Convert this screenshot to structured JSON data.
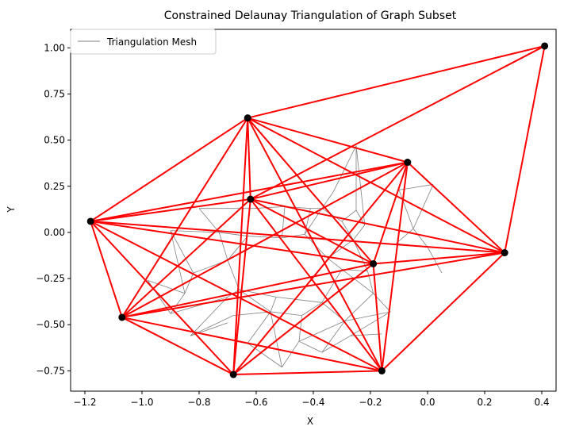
{
  "chart_data": {
    "type": "scatter",
    "title": "Constrained Delaunay Triangulation of Graph Subset",
    "xlabel": "X",
    "ylabel": "Y",
    "xlim": [
      -1.25,
      0.45
    ],
    "ylim": [
      -0.86,
      1.1
    ],
    "xticks": [
      -1.2,
      -1.0,
      -0.8,
      -0.6,
      -0.4,
      -0.2,
      0.0,
      0.2,
      0.4
    ],
    "xtick_labels": [
      "−1.2",
      "−1.0",
      "−0.8",
      "−0.6",
      "−0.4",
      "−0.2",
      "0.0",
      "0.2",
      "0.4"
    ],
    "yticks": [
      -0.75,
      -0.5,
      -0.25,
      0.0,
      0.25,
      0.5,
      0.75,
      1.0
    ],
    "ytick_labels": [
      "−0.75",
      "−0.50",
      "−0.25",
      "0.00",
      "0.25",
      "0.50",
      "0.75",
      "1.00"
    ],
    "grid": false,
    "legend": {
      "position": "upper-left",
      "entries": [
        "Triangulation Mesh"
      ]
    },
    "colors": {
      "nodes": "#000000",
      "edges": "#ff0000",
      "mesh": "#808080"
    },
    "nodes": [
      {
        "x": -1.18,
        "y": 0.06
      },
      {
        "x": -1.07,
        "y": -0.46
      },
      {
        "x": -0.68,
        "y": -0.77
      },
      {
        "x": -0.63,
        "y": 0.62
      },
      {
        "x": -0.62,
        "y": 0.18
      },
      {
        "x": -0.07,
        "y": 0.38
      },
      {
        "x": -0.19,
        "y": -0.17
      },
      {
        "x": -0.16,
        "y": -0.75
      },
      {
        "x": 0.27,
        "y": -0.11
      },
      {
        "x": 0.41,
        "y": 1.01
      }
    ],
    "edges": [
      [
        0,
        1
      ],
      [
        0,
        2
      ],
      [
        0,
        3
      ],
      [
        0,
        4
      ],
      [
        0,
        5
      ],
      [
        0,
        6
      ],
      [
        0,
        7
      ],
      [
        0,
        8
      ],
      [
        1,
        2
      ],
      [
        1,
        3
      ],
      [
        1,
        4
      ],
      [
        1,
        5
      ],
      [
        1,
        6
      ],
      [
        1,
        7
      ],
      [
        1,
        8
      ],
      [
        2,
        3
      ],
      [
        2,
        4
      ],
      [
        2,
        5
      ],
      [
        2,
        6
      ],
      [
        2,
        7
      ],
      [
        3,
        4
      ],
      [
        3,
        5
      ],
      [
        3,
        6
      ],
      [
        3,
        7
      ],
      [
        3,
        8
      ],
      [
        3,
        9
      ],
      [
        4,
        5
      ],
      [
        4,
        6
      ],
      [
        4,
        7
      ],
      [
        4,
        8
      ],
      [
        4,
        9
      ],
      [
        5,
        6
      ],
      [
        5,
        7
      ],
      [
        5,
        8
      ],
      [
        6,
        7
      ],
      [
        6,
        8
      ],
      [
        7,
        8
      ],
      [
        8,
        9
      ]
    ],
    "mesh_segments": [
      [
        [
          -0.9,
          0.01
        ],
        [
          -0.85,
          -0.33
        ]
      ],
      [
        [
          -0.9,
          0.01
        ],
        [
          -0.82,
          -0.22
        ]
      ],
      [
        [
          -0.9,
          0.01
        ],
        [
          -0.73,
          0.0
        ]
      ],
      [
        [
          -0.82,
          -0.22
        ],
        [
          -0.85,
          -0.33
        ]
      ],
      [
        [
          -0.82,
          -0.22
        ],
        [
          -0.7,
          -0.15
        ]
      ],
      [
        [
          -0.85,
          -0.33
        ],
        [
          -0.98,
          -0.26
        ]
      ],
      [
        [
          -0.85,
          -0.33
        ],
        [
          -0.9,
          -0.44
        ]
      ],
      [
        [
          -0.98,
          -0.26
        ],
        [
          -0.9,
          -0.44
        ]
      ],
      [
        [
          -0.9,
          -0.44
        ],
        [
          -0.7,
          -0.35
        ]
      ],
      [
        [
          -0.83,
          -0.56
        ],
        [
          -0.68,
          -0.45
        ]
      ],
      [
        [
          -0.83,
          -0.56
        ],
        [
          -0.7,
          -0.35
        ]
      ],
      [
        [
          -0.73,
          0.0
        ],
        [
          -0.7,
          -0.15
        ]
      ],
      [
        [
          -0.73,
          0.0
        ],
        [
          -0.63,
          -0.02
        ]
      ],
      [
        [
          -0.7,
          -0.15
        ],
        [
          -0.63,
          -0.02
        ]
      ],
      [
        [
          -0.7,
          -0.15
        ],
        [
          -0.66,
          -0.31
        ]
      ],
      [
        [
          -0.66,
          -0.31
        ],
        [
          -0.7,
          -0.35
        ]
      ],
      [
        [
          -0.66,
          -0.31
        ],
        [
          -0.53,
          -0.35
        ]
      ],
      [
        [
          -0.68,
          -0.45
        ],
        [
          -0.55,
          -0.43
        ]
      ],
      [
        [
          -0.63,
          -0.02
        ],
        [
          -0.51,
          -0.03
        ]
      ],
      [
        [
          -0.61,
          0.13
        ],
        [
          -0.5,
          0.14
        ]
      ],
      [
        [
          -0.5,
          0.14
        ],
        [
          -0.51,
          -0.03
        ]
      ],
      [
        [
          -0.5,
          0.14
        ],
        [
          -0.41,
          0.13
        ]
      ],
      [
        [
          -0.51,
          -0.03
        ],
        [
          -0.43,
          -0.01
        ]
      ],
      [
        [
          -0.43,
          -0.01
        ],
        [
          -0.41,
          0.13
        ]
      ],
      [
        [
          -0.43,
          -0.01
        ],
        [
          -0.37,
          0.13
        ]
      ],
      [
        [
          -0.41,
          0.13
        ],
        [
          -0.37,
          0.13
        ]
      ],
      [
        [
          -0.37,
          0.13
        ],
        [
          -0.3,
          0.06
        ]
      ],
      [
        [
          -0.3,
          0.06
        ],
        [
          -0.25,
          0.12
        ]
      ],
      [
        [
          -0.3,
          0.06
        ],
        [
          -0.26,
          -0.04
        ]
      ],
      [
        [
          -0.26,
          -0.04
        ],
        [
          -0.22,
          0.04
        ]
      ],
      [
        [
          -0.22,
          0.04
        ],
        [
          -0.25,
          0.12
        ]
      ],
      [
        [
          -0.25,
          0.12
        ],
        [
          -0.25,
          0.47
        ]
      ],
      [
        [
          -0.22,
          0.04
        ],
        [
          -0.25,
          0.47
        ]
      ],
      [
        [
          -0.33,
          0.22
        ],
        [
          -0.37,
          0.13
        ]
      ],
      [
        [
          -0.33,
          0.22
        ],
        [
          -0.25,
          0.47
        ]
      ],
      [
        [
          -0.26,
          -0.04
        ],
        [
          -0.35,
          -0.14
        ]
      ],
      [
        [
          -0.35,
          -0.14
        ],
        [
          -0.43,
          -0.01
        ]
      ],
      [
        [
          -0.35,
          -0.14
        ],
        [
          -0.3,
          -0.2
        ]
      ],
      [
        [
          -0.3,
          -0.2
        ],
        [
          -0.21,
          -0.21
        ]
      ],
      [
        [
          -0.21,
          -0.21
        ],
        [
          -0.26,
          -0.04
        ]
      ],
      [
        [
          -0.21,
          -0.21
        ],
        [
          -0.19,
          -0.33
        ]
      ],
      [
        [
          -0.19,
          -0.33
        ],
        [
          -0.3,
          -0.2
        ]
      ],
      [
        [
          -0.19,
          -0.33
        ],
        [
          -0.13,
          -0.43
        ]
      ],
      [
        [
          -0.13,
          -0.43
        ],
        [
          -0.29,
          -0.48
        ]
      ],
      [
        [
          -0.29,
          -0.48
        ],
        [
          -0.19,
          -0.33
        ]
      ],
      [
        [
          -0.29,
          -0.48
        ],
        [
          -0.37,
          -0.38
        ]
      ],
      [
        [
          -0.37,
          -0.38
        ],
        [
          -0.3,
          -0.2
        ]
      ],
      [
        [
          -0.37,
          -0.38
        ],
        [
          -0.53,
          -0.35
        ]
      ],
      [
        [
          -0.53,
          -0.35
        ],
        [
          -0.55,
          -0.43
        ]
      ],
      [
        [
          -0.55,
          -0.43
        ],
        [
          -0.44,
          -0.45
        ]
      ],
      [
        [
          -0.44,
          -0.45
        ],
        [
          -0.37,
          -0.38
        ]
      ],
      [
        [
          -0.44,
          -0.45
        ],
        [
          -0.45,
          -0.59
        ]
      ],
      [
        [
          -0.45,
          -0.59
        ],
        [
          -0.29,
          -0.48
        ]
      ],
      [
        [
          -0.45,
          -0.59
        ],
        [
          -0.51,
          -0.73
        ]
      ],
      [
        [
          -0.45,
          -0.59
        ],
        [
          -0.37,
          -0.65
        ]
      ],
      [
        [
          -0.37,
          -0.65
        ],
        [
          -0.29,
          -0.48
        ]
      ],
      [
        [
          -0.37,
          -0.65
        ],
        [
          -0.27,
          -0.56
        ]
      ],
      [
        [
          -0.27,
          -0.56
        ],
        [
          -0.13,
          -0.43
        ]
      ],
      [
        [
          -0.27,
          -0.56
        ],
        [
          -0.16,
          -0.55
        ]
      ],
      [
        [
          -0.55,
          -0.43
        ],
        [
          -0.51,
          -0.73
        ]
      ],
      [
        [
          -0.51,
          -0.73
        ],
        [
          -0.63,
          -0.6
        ]
      ],
      [
        [
          -0.63,
          -0.6
        ],
        [
          -0.55,
          -0.43
        ]
      ],
      [
        [
          -0.1,
          0.23
        ],
        [
          0.02,
          0.26
        ]
      ],
      [
        [
          0.02,
          0.26
        ],
        [
          -0.05,
          0.02
        ]
      ],
      [
        [
          -0.05,
          0.02
        ],
        [
          -0.1,
          0.23
        ]
      ],
      [
        [
          -0.05,
          0.02
        ],
        [
          0.0,
          -0.08
        ]
      ],
      [
        [
          0.0,
          -0.08
        ],
        [
          0.05,
          -0.22
        ]
      ],
      [
        [
          -0.11,
          -0.06
        ],
        [
          -0.05,
          0.02
        ]
      ],
      [
        [
          -0.11,
          -0.06
        ],
        [
          0.0,
          -0.08
        ]
      ],
      [
        [
          -0.8,
          0.13
        ],
        [
          -0.73,
          0.0
        ]
      ],
      [
        [
          -0.8,
          0.13
        ],
        [
          -0.61,
          0.13
        ]
      ],
      [
        [
          -0.66,
          -0.31
        ],
        [
          -0.55,
          -0.43
        ]
      ],
      [
        [
          -0.83,
          -0.56
        ],
        [
          -0.7,
          -0.49
        ]
      ]
    ]
  }
}
